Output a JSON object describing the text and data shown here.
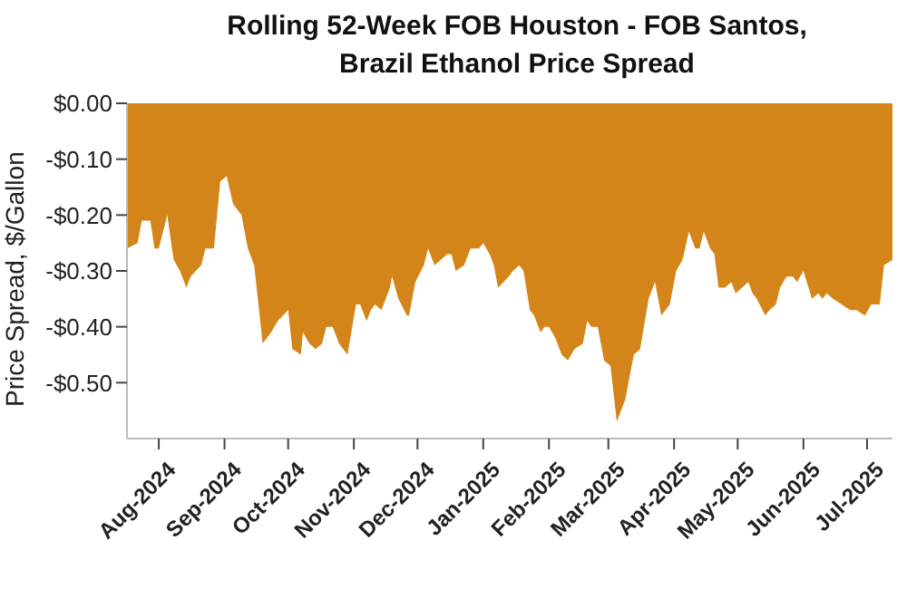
{
  "chart_data": {
    "type": "area",
    "title": "Rolling 52-Week FOB Houston - FOB Santos, Brazil Ethanol Price Spread",
    "ylabel": "Price Spread, $/Gallon",
    "x": [
      "2024-07-17",
      "2024-07-22",
      "2024-07-24",
      "2024-07-26",
      "2024-07-28",
      "2024-07-30",
      "2024-08-01",
      "2024-08-05",
      "2024-08-08",
      "2024-08-11",
      "2024-08-14",
      "2024-08-16",
      "2024-08-21",
      "2024-08-23",
      "2024-08-25",
      "2024-08-27",
      "2024-08-30",
      "2024-09-02",
      "2024-09-05",
      "2024-09-09",
      "2024-09-12",
      "2024-09-15",
      "2024-09-19",
      "2024-09-23",
      "2024-09-26",
      "2024-10-01",
      "2024-10-03",
      "2024-10-07",
      "2024-10-08",
      "2024-10-11",
      "2024-10-14",
      "2024-10-17",
      "2024-10-19",
      "2024-10-22",
      "2024-10-25",
      "2024-10-29",
      "2024-11-02",
      "2024-11-04",
      "2024-11-07",
      "2024-11-09",
      "2024-11-11",
      "2024-11-14",
      "2024-11-18",
      "2024-11-19",
      "2024-11-22",
      "2024-11-26",
      "2024-11-27",
      "2024-11-30",
      "2024-12-04",
      "2024-12-06",
      "2024-12-09",
      "2024-12-12",
      "2024-12-15",
      "2024-12-17",
      "2024-12-19",
      "2024-12-23",
      "2024-12-26",
      "2024-12-30",
      "2025-01-01",
      "2025-01-04",
      "2025-01-06",
      "2025-01-08",
      "2025-01-13",
      "2025-01-15",
      "2025-01-18",
      "2025-01-20",
      "2025-01-23",
      "2025-01-25",
      "2025-01-28",
      "2025-01-30",
      "2025-02-01",
      "2025-02-04",
      "2025-02-07",
      "2025-02-10",
      "2025-02-13",
      "2025-02-17",
      "2025-02-19",
      "2025-02-21",
      "2025-02-24",
      "2025-02-27",
      "2025-03-02",
      "2025-03-05",
      "2025-03-09",
      "2025-03-13",
      "2025-03-16",
      "2025-03-20",
      "2025-03-23",
      "2025-03-26",
      "2025-03-30",
      "2025-04-02",
      "2025-04-05",
      "2025-04-08",
      "2025-04-11",
      "2025-04-13",
      "2025-04-15",
      "2025-04-18",
      "2025-04-20",
      "2025-04-22",
      "2025-04-25",
      "2025-04-28",
      "2025-04-30",
      "2025-05-03",
      "2025-05-06",
      "2025-05-08",
      "2025-05-10",
      "2025-05-14",
      "2025-05-16",
      "2025-05-19",
      "2025-05-21",
      "2025-05-24",
      "2025-05-27",
      "2025-05-29",
      "2025-06-01",
      "2025-06-05",
      "2025-06-08",
      "2025-06-10",
      "2025-06-12",
      "2025-06-15",
      "2025-06-19",
      "2025-06-23",
      "2025-06-26",
      "2025-06-30",
      "2025-07-03",
      "2025-07-07",
      "2025-07-09",
      "2025-07-13"
    ],
    "series": [
      {
        "color": "#d4851a",
        "values": [
          -0.26,
          -0.25,
          -0.21,
          -0.21,
          -0.21,
          -0.26,
          -0.26,
          -0.2,
          -0.28,
          -0.3,
          -0.33,
          -0.31,
          -0.29,
          -0.26,
          -0.26,
          -0.26,
          -0.14,
          -0.13,
          -0.18,
          -0.2,
          -0.26,
          -0.29,
          -0.43,
          -0.41,
          -0.39,
          -0.37,
          -0.44,
          -0.45,
          -0.41,
          -0.43,
          -0.44,
          -0.43,
          -0.4,
          -0.4,
          -0.43,
          -0.45,
          -0.36,
          -0.36,
          -0.39,
          -0.37,
          -0.36,
          -0.37,
          -0.33,
          -0.31,
          -0.35,
          -0.38,
          -0.38,
          -0.32,
          -0.29,
          -0.26,
          -0.29,
          -0.28,
          -0.27,
          -0.27,
          -0.3,
          -0.29,
          -0.26,
          -0.26,
          -0.25,
          -0.27,
          -0.29,
          -0.33,
          -0.31,
          -0.3,
          -0.29,
          -0.3,
          -0.37,
          -0.38,
          -0.41,
          -0.4,
          -0.4,
          -0.42,
          -0.45,
          -0.46,
          -0.44,
          -0.43,
          -0.39,
          -0.4,
          -0.4,
          -0.46,
          -0.47,
          -0.57,
          -0.53,
          -0.45,
          -0.44,
          -0.35,
          -0.32,
          -0.38,
          -0.36,
          -0.3,
          -0.28,
          -0.23,
          -0.26,
          -0.26,
          -0.23,
          -0.26,
          -0.27,
          -0.33,
          -0.33,
          -0.32,
          -0.34,
          -0.33,
          -0.32,
          -0.34,
          -0.35,
          -0.38,
          -0.37,
          -0.36,
          -0.33,
          -0.31,
          -0.31,
          -0.32,
          -0.3,
          -0.35,
          -0.34,
          -0.35,
          -0.34,
          -0.35,
          -0.36,
          -0.37,
          -0.37,
          -0.38,
          -0.36,
          -0.36,
          -0.29,
          -0.28
        ]
      }
    ],
    "xlim": [
      "2024-07-17",
      "2025-07-13"
    ],
    "xticks": [
      {
        "value": "2024-08-01",
        "label": "Aug-2024"
      },
      {
        "value": "2024-09-01",
        "label": "Sep-2024"
      },
      {
        "value": "2024-10-01",
        "label": "Oct-2024"
      },
      {
        "value": "2024-11-01",
        "label": "Nov-2024"
      },
      {
        "value": "2024-12-01",
        "label": "Dec-2024"
      },
      {
        "value": "2025-01-01",
        "label": "Jan-2025"
      },
      {
        "value": "2025-02-01",
        "label": "Feb-2025"
      },
      {
        "value": "2025-03-01",
        "label": "Mar-2025"
      },
      {
        "value": "2025-04-01",
        "label": "Apr-2025"
      },
      {
        "value": "2025-05-01",
        "label": "May-2025"
      },
      {
        "value": "2025-06-01",
        "label": "Jun-2025"
      },
      {
        "value": "2025-07-01",
        "label": "Jul-2025"
      }
    ],
    "ylim": [
      -0.6,
      0
    ],
    "yticks": [
      {
        "value": 0,
        "label": "$0.00"
      },
      {
        "value": -0.1,
        "label": "-$0.10"
      },
      {
        "value": -0.2,
        "label": "-$0.20"
      },
      {
        "value": -0.3,
        "label": "-$0.30"
      },
      {
        "value": -0.4,
        "label": "-$0.40"
      },
      {
        "value": -0.5,
        "label": "-$0.50"
      }
    ],
    "grid": false,
    "legend": false
  }
}
